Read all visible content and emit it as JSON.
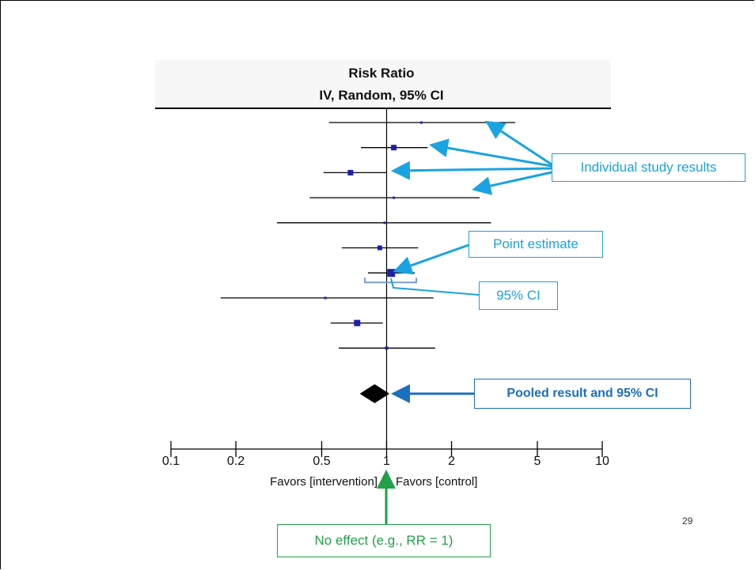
{
  "slide": {
    "page_number": "29"
  },
  "callouts": {
    "individual": "Individual study results",
    "point": "Point estimate",
    "ci": "95% CI",
    "pooled": "Pooled result and 95% CI",
    "noeffect": "No effect (e.g., RR = 1)"
  },
  "colors": {
    "marker": "#1f1fa8",
    "callout_blue": "#1aa3e0",
    "pooled_blue": "#1b6fbf",
    "noeffect_green": "#22a04a"
  },
  "chart_data": {
    "type": "forest",
    "title": "Risk Ratio",
    "subtitle": "IV, Random, 95% CI",
    "scale": "log",
    "xlim": [
      0.1,
      10
    ],
    "x_ticks": [
      0.1,
      0.2,
      0.5,
      1,
      2,
      5,
      10
    ],
    "x_tick_labels": [
      "0.1",
      "0.2",
      "0.5",
      "1",
      "2",
      "5",
      "10"
    ],
    "favors_left": "Favors [intervention]",
    "favors_right": "Favors [control]",
    "reference_line": 1,
    "studies": [
      {
        "estimate": 1.45,
        "lower": 0.54,
        "upper": 3.95
      },
      {
        "estimate": 1.08,
        "lower": 0.76,
        "upper": 1.55
      },
      {
        "estimate": 0.68,
        "lower": 0.51,
        "upper": 1.0
      },
      {
        "estimate": 1.08,
        "lower": 0.44,
        "upper": 2.7
      },
      {
        "estimate": 0.98,
        "lower": 0.31,
        "upper": 3.05
      },
      {
        "estimate": 0.93,
        "lower": 0.62,
        "upper": 1.4
      },
      {
        "estimate": 1.05,
        "lower": 0.82,
        "upper": 1.35
      },
      {
        "estimate": 0.52,
        "lower": 0.17,
        "upper": 1.65
      },
      {
        "estimate": 0.73,
        "lower": 0.55,
        "upper": 0.96
      },
      {
        "estimate": 1.0,
        "lower": 0.6,
        "upper": 1.68
      }
    ],
    "pooled": {
      "estimate": 0.88,
      "lower": 0.79,
      "upper": 0.98
    }
  }
}
